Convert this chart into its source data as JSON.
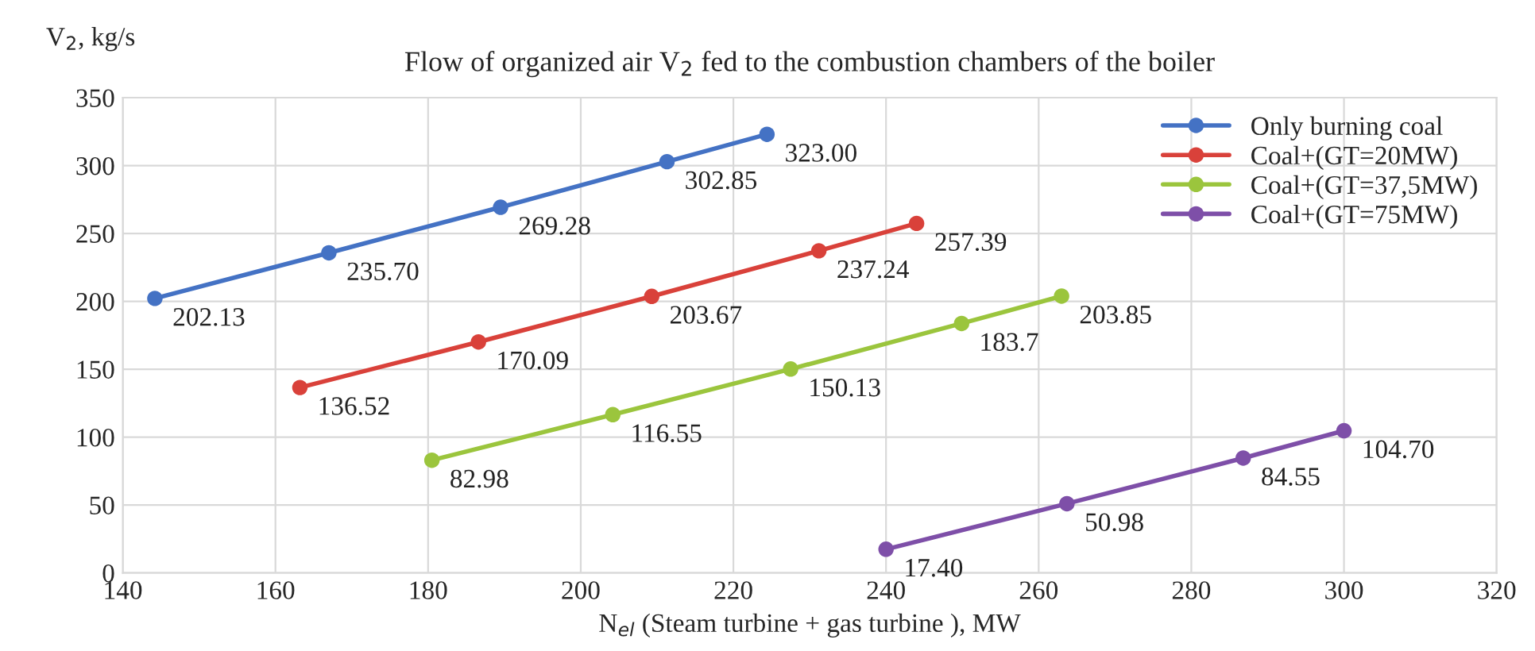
{
  "chart_data": {
    "type": "line",
    "title": "Flow of organized air V$_{2}$ fed to the combustion chambers of the boiler",
    "xlabel": "N$_{el}$ (Steam turbine + gas turbine ), MW",
    "ylabel": "V$_{2}$, kg/s",
    "series": [
      {
        "name": "Only burning coal",
        "color": "#4472c4",
        "x": [
          144.2,
          167.0,
          189.5,
          211.3,
          224.4
        ],
        "values": [
          202.13,
          235.7,
          269.28,
          302.85,
          323.0
        ],
        "value_labels": [
          "202.13",
          "235.70",
          "269.28",
          "302.85",
          "323.00"
        ]
      },
      {
        "name": "Coal+(GT=20MW)",
        "color": "#d9413a",
        "x": [
          163.2,
          186.6,
          209.3,
          231.2,
          244.0
        ],
        "values": [
          136.52,
          170.09,
          203.67,
          237.24,
          257.39
        ],
        "value_labels": [
          "136.52",
          "170.09",
          "203.67",
          "237.24",
          "257.39"
        ]
      },
      {
        "name": "Coal+(GT=37,5MW)",
        "color": "#9bc53d",
        "x": [
          180.5,
          204.2,
          227.5,
          249.9,
          263.0
        ],
        "values": [
          82.98,
          116.55,
          150.13,
          183.7,
          203.85
        ],
        "value_labels": [
          "82.98",
          "116.55",
          "150.13",
          "183.7",
          "203.85"
        ]
      },
      {
        "name": "Coal+(GT=75MW)",
        "color": "#7e4fa8",
        "x": [
          240.0,
          263.7,
          286.8,
          300.0
        ],
        "values": [
          17.4,
          50.98,
          84.55,
          104.7
        ],
        "value_labels": [
          "17.40",
          "50.98",
          "84.55",
          "104.70"
        ]
      }
    ],
    "xlim": [
      140,
      320
    ],
    "xticks": [
      140,
      160,
      180,
      200,
      220,
      240,
      260,
      280,
      300,
      320
    ],
    "ylim": [
      0,
      350
    ],
    "yticks": [
      0,
      50,
      100,
      150,
      200,
      250,
      300,
      350
    ],
    "grid": true,
    "legend": "top right",
    "marker": "circle",
    "line_style": "solid"
  }
}
